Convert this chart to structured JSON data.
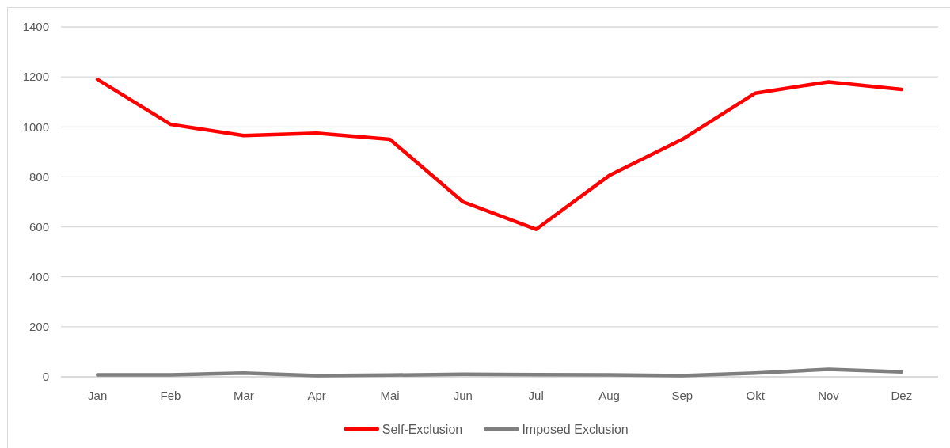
{
  "chart_data": {
    "type": "line",
    "categories": [
      "Jan",
      "Feb",
      "Mar",
      "Apr",
      "Mai",
      "Jun",
      "Jul",
      "Aug",
      "Sep",
      "Okt",
      "Nov",
      "Dez"
    ],
    "series": [
      {
        "name": "Self-Exclusion",
        "color": "#ff0000",
        "values": [
          1190,
          1010,
          965,
          975,
          950,
          700,
          590,
          805,
          950,
          1135,
          1180,
          1150
        ]
      },
      {
        "name": "Imposed Exclusion",
        "color": "#7f7f7f",
        "values": [
          8,
          8,
          15,
          5,
          7,
          10,
          9,
          8,
          5,
          15,
          30,
          20
        ]
      }
    ],
    "ylim": [
      0,
      1400
    ],
    "yticks": [
      0,
      200,
      400,
      600,
      800,
      1000,
      1200,
      1400
    ],
    "grid": "y",
    "legend": "bottom"
  }
}
